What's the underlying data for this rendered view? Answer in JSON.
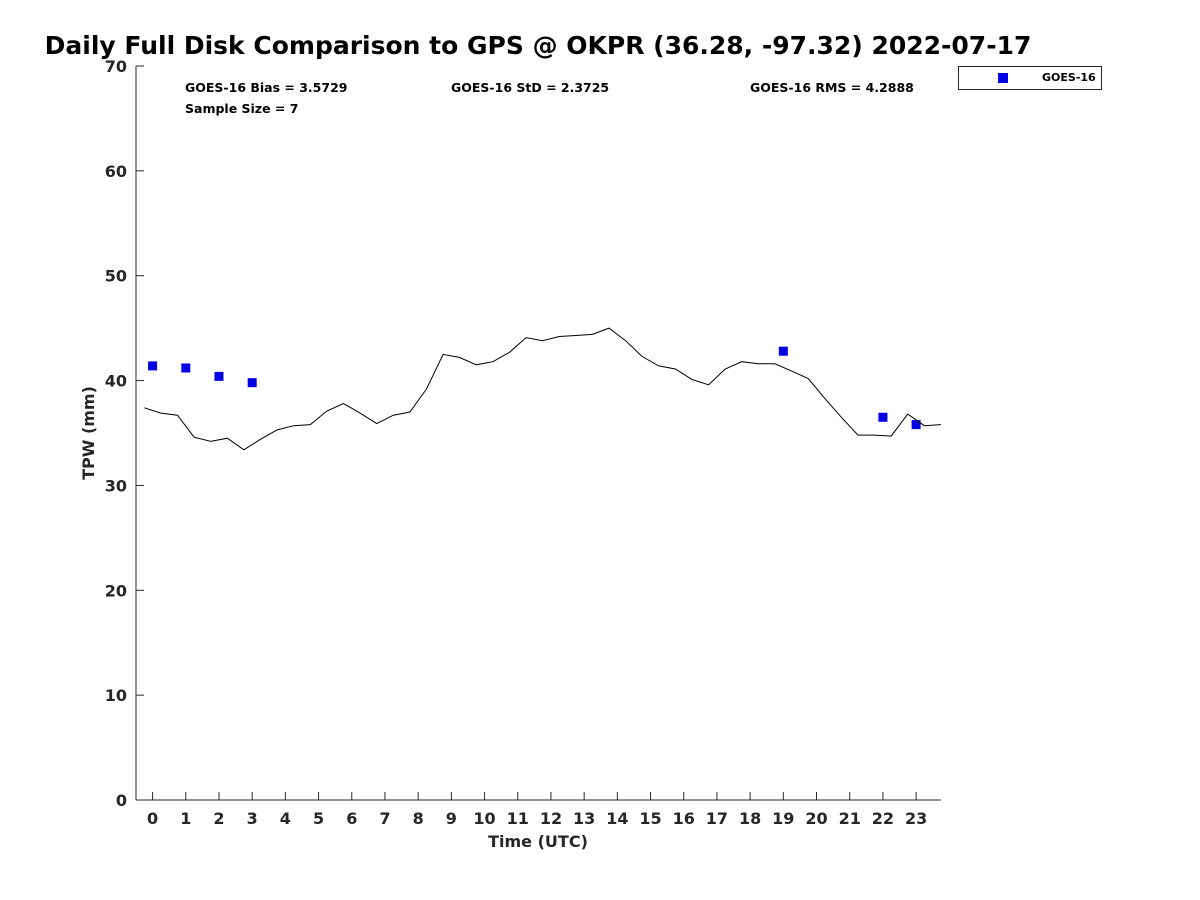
{
  "chart_data": {
    "type": "scatter",
    "title": "Daily Full Disk Comparison to GPS @ OKPR (36.28, -97.32) 2022-07-17",
    "xlabel": "Time (UTC)",
    "ylabel": "TPW (mm)",
    "xlim": [
      -0.5,
      23.75
    ],
    "ylim": [
      0,
      70
    ],
    "x_ticks": [
      0,
      1,
      2,
      3,
      4,
      5,
      6,
      7,
      8,
      9,
      10,
      11,
      12,
      13,
      14,
      15,
      16,
      17,
      18,
      19,
      20,
      21,
      22,
      23
    ],
    "y_ticks": [
      0,
      10,
      20,
      30,
      40,
      50,
      60,
      70
    ],
    "grid": false,
    "legend_placement": "outside-top-right",
    "stats": {
      "bias": "GOES-16 Bias = 3.5729",
      "std": "GOES-16 StD = 2.3725",
      "rms": "GOES-16 RMS = 4.2888",
      "sample_size": "Sample Size = 7"
    },
    "series": [
      {
        "name": "GOES-16",
        "type": "scatter",
        "marker": "square",
        "color": "#0000e6",
        "x": [
          0,
          1,
          2,
          3,
          19,
          22,
          23
        ],
        "y": [
          41.4,
          41.2,
          40.4,
          39.8,
          42.8,
          36.5,
          35.8
        ]
      },
      {
        "type": "line",
        "color": "#000000",
        "x": [
          -0.25,
          0.25,
          0.75,
          1.25,
          1.75,
          2.25,
          2.75,
          3.25,
          3.75,
          4.25,
          4.75,
          5.25,
          5.75,
          6.25,
          6.75,
          7.25,
          7.75,
          8.25,
          8.75,
          9.25,
          9.75,
          10.25,
          10.75,
          11.25,
          11.75,
          12.25,
          12.75,
          13.25,
          13.75,
          14.25,
          14.75,
          15.25,
          15.75,
          16.25,
          16.75,
          17.25,
          17.75,
          18.25,
          18.75,
          19.25,
          19.75,
          20.25,
          20.75,
          21.25,
          21.75,
          22.25,
          22.75,
          23.25,
          23.75
        ],
        "y": [
          37.4,
          36.9,
          36.7,
          34.6,
          34.2,
          34.5,
          33.4,
          34.4,
          35.3,
          35.7,
          35.8,
          37.1,
          37.8,
          36.9,
          35.9,
          36.7,
          37.0,
          39.2,
          42.5,
          42.2,
          41.5,
          41.8,
          42.7,
          44.1,
          43.8,
          44.2,
          44.3,
          44.4,
          45.0,
          43.8,
          42.3,
          41.4,
          41.1,
          40.1,
          39.6,
          41.1,
          41.8,
          41.6,
          41.6,
          40.9,
          40.2,
          38.3,
          36.5,
          34.8,
          34.8,
          34.7,
          36.8,
          35.7,
          35.8
        ]
      }
    ]
  },
  "legend": {
    "label": "GOES-16"
  }
}
